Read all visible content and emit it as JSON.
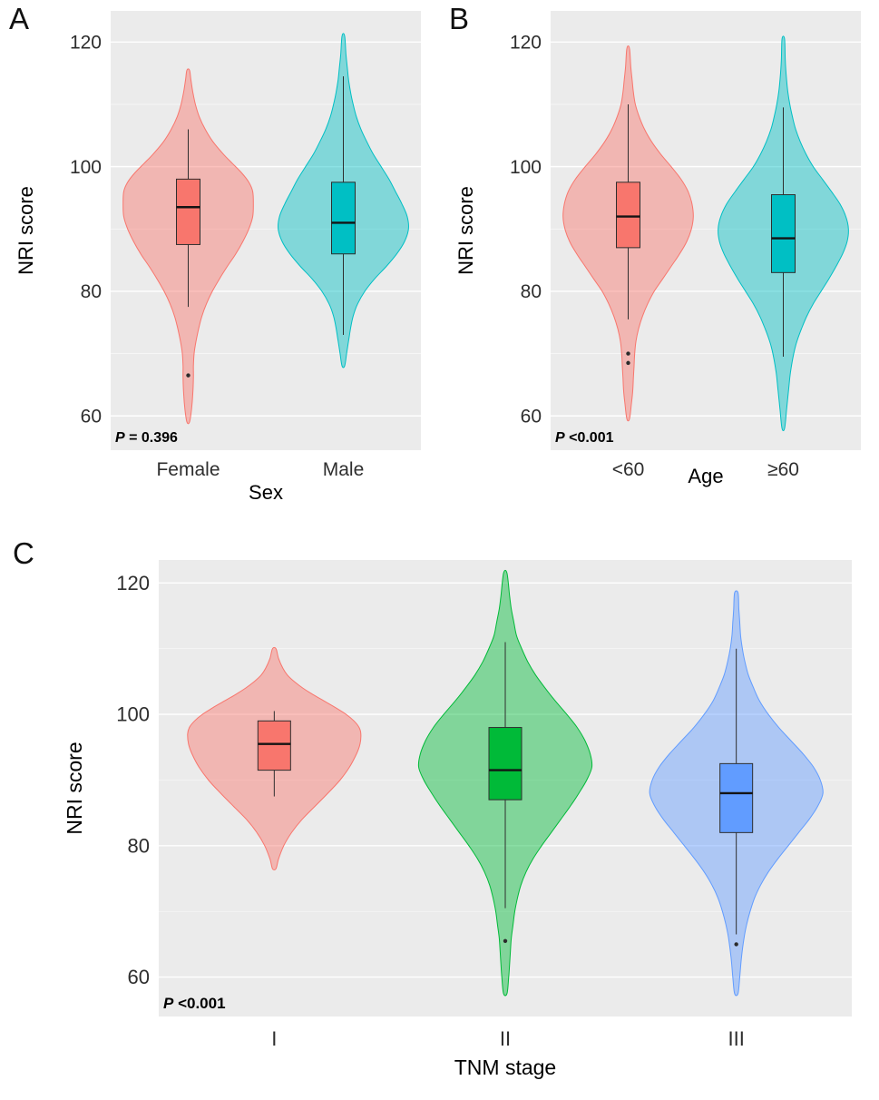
{
  "figure": {
    "background": "#ffffff",
    "panel_background": "#EBEBEB",
    "grid_color": "#ffffff"
  },
  "chart_data": [
    {
      "type": "violin",
      "panel_letter": "A",
      "title": "",
      "xlabel": "Sex",
      "ylabel": "NRI score",
      "p_label": "P = 0.396",
      "ylim": [
        54.5,
        125
      ],
      "yticks": [
        60,
        80,
        100,
        120
      ],
      "yticks_minor": [
        70,
        90,
        110
      ],
      "categories": [
        "Female",
        "Male"
      ],
      "groups": [
        {
          "name": "Female",
          "color": "#F8766D",
          "box": {
            "q1": 87.5,
            "median": 93.5,
            "q3": 98,
            "whisker_low": 77.5,
            "whisker_high": 106
          },
          "outliers": [
            66.5
          ],
          "violin_range": [
            59,
            115.5
          ],
          "density": [
            [
              59,
              0.02
            ],
            [
              61,
              0.05
            ],
            [
              63.5,
              0.07
            ],
            [
              66,
              0.08
            ],
            [
              68,
              0.08
            ],
            [
              70,
              0.09
            ],
            [
              72,
              0.12
            ],
            [
              74,
              0.16
            ],
            [
              76,
              0.21
            ],
            [
              78,
              0.28
            ],
            [
              80,
              0.37
            ],
            [
              82,
              0.48
            ],
            [
              84,
              0.6
            ],
            [
              86,
              0.73
            ],
            [
              88,
              0.84
            ],
            [
              90,
              0.93
            ],
            [
              92,
              0.99
            ],
            [
              94,
              1.0
            ],
            [
              96,
              0.99
            ],
            [
              97.5,
              0.93
            ],
            [
              99,
              0.82
            ],
            [
              100.5,
              0.68
            ],
            [
              102,
              0.54
            ],
            [
              104,
              0.38
            ],
            [
              106,
              0.26
            ],
            [
              108,
              0.17
            ],
            [
              110,
              0.11
            ],
            [
              112,
              0.07
            ],
            [
              114,
              0.04
            ],
            [
              115.5,
              0.02
            ]
          ]
        },
        {
          "name": "Male",
          "color": "#00BFC4",
          "box": {
            "q1": 86,
            "median": 91,
            "q3": 97.5,
            "whisker_low": 73,
            "whisker_high": 114.5
          },
          "outliers": [],
          "violin_range": [
            68,
            121
          ],
          "density": [
            [
              68,
              0.02
            ],
            [
              70,
              0.05
            ],
            [
              72,
              0.08
            ],
            [
              74,
              0.11
            ],
            [
              76,
              0.15
            ],
            [
              78,
              0.22
            ],
            [
              80,
              0.33
            ],
            [
              82,
              0.48
            ],
            [
              84,
              0.66
            ],
            [
              86,
              0.82
            ],
            [
              88,
              0.94
            ],
            [
              90,
              1.0
            ],
            [
              92,
              0.98
            ],
            [
              94,
              0.9
            ],
            [
              96,
              0.8
            ],
            [
              98,
              0.7
            ],
            [
              100,
              0.58
            ],
            [
              102,
              0.46
            ],
            [
              104,
              0.36
            ],
            [
              106,
              0.27
            ],
            [
              108,
              0.2
            ],
            [
              110,
              0.15
            ],
            [
              112,
              0.11
            ],
            [
              114,
              0.08
            ],
            [
              116,
              0.06
            ],
            [
              118,
              0.04
            ],
            [
              121,
              0.02
            ]
          ]
        }
      ]
    },
    {
      "type": "violin",
      "panel_letter": "B",
      "title": "",
      "xlabel": "Age",
      "ylabel": "NRI score",
      "p_label": "P <0.001",
      "ylim": [
        54.5,
        125
      ],
      "yticks": [
        60,
        80,
        100,
        120
      ],
      "yticks_minor": [
        70,
        90,
        110
      ],
      "categories": [
        "<60",
        "≥60"
      ],
      "groups": [
        {
          "name": "<60",
          "color": "#F8766D",
          "box": {
            "q1": 87,
            "median": 92,
            "q3": 97.5,
            "whisker_low": 75.5,
            "whisker_high": 110
          },
          "outliers": [
            68.5,
            70
          ],
          "violin_range": [
            59.5,
            119
          ],
          "density": [
            [
              59.5,
              0.02
            ],
            [
              62,
              0.05
            ],
            [
              64,
              0.07
            ],
            [
              66,
              0.08
            ],
            [
              68,
              0.09
            ],
            [
              70,
              0.1
            ],
            [
              72,
              0.12
            ],
            [
              74,
              0.16
            ],
            [
              76,
              0.22
            ],
            [
              78,
              0.3
            ],
            [
              80,
              0.4
            ],
            [
              82,
              0.53
            ],
            [
              84,
              0.66
            ],
            [
              86,
              0.79
            ],
            [
              88,
              0.9
            ],
            [
              90,
              0.97
            ],
            [
              92,
              1.0
            ],
            [
              94,
              0.98
            ],
            [
              96,
              0.92
            ],
            [
              98,
              0.81
            ],
            [
              100,
              0.66
            ],
            [
              102,
              0.5
            ],
            [
              104,
              0.36
            ],
            [
              106,
              0.25
            ],
            [
              108,
              0.17
            ],
            [
              110,
              0.11
            ],
            [
              112,
              0.08
            ],
            [
              114,
              0.06
            ],
            [
              116,
              0.04
            ],
            [
              119,
              0.02
            ]
          ]
        },
        {
          "name": "≥60",
          "color": "#00BFC4",
          "box": {
            "q1": 83,
            "median": 88.5,
            "q3": 95.5,
            "whisker_low": 69.5,
            "whisker_high": 109.5
          },
          "outliers": [],
          "violin_range": [
            58,
            120.5
          ],
          "density": [
            [
              58,
              0.02
            ],
            [
              61,
              0.05
            ],
            [
              64,
              0.08
            ],
            [
              67,
              0.11
            ],
            [
              70,
              0.16
            ],
            [
              72,
              0.21
            ],
            [
              74,
              0.28
            ],
            [
              76,
              0.36
            ],
            [
              78,
              0.46
            ],
            [
              80,
              0.58
            ],
            [
              82,
              0.7
            ],
            [
              84,
              0.81
            ],
            [
              86,
              0.91
            ],
            [
              88,
              0.98
            ],
            [
              90,
              1.0
            ],
            [
              92,
              0.96
            ],
            [
              94,
              0.87
            ],
            [
              96,
              0.74
            ],
            [
              98,
              0.6
            ],
            [
              100,
              0.46
            ],
            [
              102,
              0.35
            ],
            [
              104,
              0.26
            ],
            [
              106,
              0.19
            ],
            [
              108,
              0.14
            ],
            [
              110,
              0.1
            ],
            [
              112,
              0.07
            ],
            [
              114,
              0.05
            ],
            [
              117,
              0.03
            ],
            [
              120.5,
              0.02
            ]
          ]
        }
      ]
    },
    {
      "type": "violin",
      "panel_letter": "C",
      "title": "",
      "xlabel": "TNM stage",
      "ylabel": "NRI score",
      "p_label": "P <0.001",
      "ylim": [
        54,
        123.5
      ],
      "yticks": [
        60,
        80,
        100,
        120
      ],
      "yticks_minor": [
        70,
        90,
        110
      ],
      "categories": [
        "I",
        "II",
        "III"
      ],
      "groups": [
        {
          "name": "I",
          "color": "#F8766D",
          "box": {
            "q1": 91.5,
            "median": 95.5,
            "q3": 99,
            "whisker_low": 87.5,
            "whisker_high": 100.5
          },
          "outliers": [],
          "violin_range": [
            76.5,
            110
          ],
          "density": [
            [
              76.5,
              0.02
            ],
            [
              78,
              0.05
            ],
            [
              80,
              0.11
            ],
            [
              82,
              0.2
            ],
            [
              84,
              0.32
            ],
            [
              86,
              0.47
            ],
            [
              88,
              0.62
            ],
            [
              90,
              0.76
            ],
            [
              92,
              0.87
            ],
            [
              94,
              0.95
            ],
            [
              95.5,
              0.99
            ],
            [
              97,
              1.0
            ],
            [
              98,
              0.98
            ],
            [
              99,
              0.92
            ],
            [
              100,
              0.83
            ],
            [
              101,
              0.71
            ],
            [
              102,
              0.58
            ],
            [
              103,
              0.45
            ],
            [
              104,
              0.33
            ],
            [
              105,
              0.23
            ],
            [
              106,
              0.15
            ],
            [
              107,
              0.1
            ],
            [
              108.5,
              0.05
            ],
            [
              110,
              0.02
            ]
          ]
        },
        {
          "name": "II",
          "color": "#00BA38",
          "box": {
            "q1": 87,
            "median": 91.5,
            "q3": 98,
            "whisker_low": 70.5,
            "whisker_high": 111
          },
          "outliers": [
            65.5
          ],
          "violin_range": [
            57.5,
            121.5
          ],
          "density": [
            [
              57.5,
              0.02
            ],
            [
              60,
              0.04
            ],
            [
              62,
              0.05
            ],
            [
              64,
              0.06
            ],
            [
              66,
              0.07
            ],
            [
              68,
              0.09
            ],
            [
              70,
              0.11
            ],
            [
              72,
              0.14
            ],
            [
              74,
              0.18
            ],
            [
              76,
              0.24
            ],
            [
              78,
              0.32
            ],
            [
              80,
              0.42
            ],
            [
              82,
              0.53
            ],
            [
              84,
              0.64
            ],
            [
              86,
              0.75
            ],
            [
              88,
              0.85
            ],
            [
              90,
              0.94
            ],
            [
              92,
              1.0
            ],
            [
              94,
              0.98
            ],
            [
              96,
              0.92
            ],
            [
              98,
              0.83
            ],
            [
              100,
              0.71
            ],
            [
              102,
              0.58
            ],
            [
              104,
              0.46
            ],
            [
              106,
              0.35
            ],
            [
              108,
              0.26
            ],
            [
              110,
              0.19
            ],
            [
              112,
              0.13
            ],
            [
              114,
              0.1
            ],
            [
              116,
              0.07
            ],
            [
              118,
              0.05
            ],
            [
              121.5,
              0.02
            ]
          ]
        },
        {
          "name": "III",
          "color": "#619CFF",
          "box": {
            "q1": 82,
            "median": 88,
            "q3": 92.5,
            "whisker_low": 66.5,
            "whisker_high": 110
          },
          "outliers": [
            65
          ],
          "violin_range": [
            57.5,
            118.5
          ],
          "density": [
            [
              57.5,
              0.02
            ],
            [
              60,
              0.04
            ],
            [
              63,
              0.06
            ],
            [
              66,
              0.09
            ],
            [
              68,
              0.12
            ],
            [
              70,
              0.16
            ],
            [
              72,
              0.21
            ],
            [
              74,
              0.28
            ],
            [
              76,
              0.37
            ],
            [
              78,
              0.48
            ],
            [
              80,
              0.6
            ],
            [
              82,
              0.72
            ],
            [
              84,
              0.84
            ],
            [
              86,
              0.94
            ],
            [
              88,
              1.0
            ],
            [
              90,
              0.97
            ],
            [
              92,
              0.89
            ],
            [
              94,
              0.77
            ],
            [
              96,
              0.63
            ],
            [
              98,
              0.49
            ],
            [
              100,
              0.37
            ],
            [
              102,
              0.27
            ],
            [
              104,
              0.2
            ],
            [
              106,
              0.14
            ],
            [
              108,
              0.1
            ],
            [
              110,
              0.07
            ],
            [
              112,
              0.05
            ],
            [
              114,
              0.04
            ],
            [
              116,
              0.03
            ],
            [
              118.5,
              0.02
            ]
          ]
        }
      ]
    }
  ]
}
